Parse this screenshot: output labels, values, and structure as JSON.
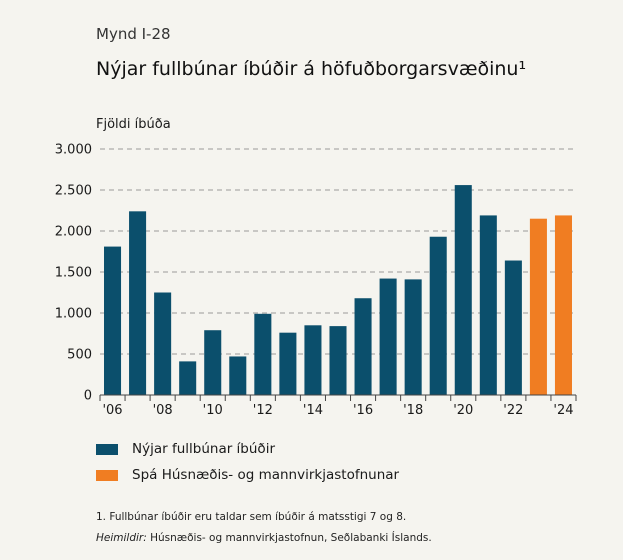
{
  "figure_label": "Mynd I-28",
  "title": "Nýjar fullbúnar íbúðir á höfuðborgarsvæðinu¹",
  "chart_data": {
    "type": "bar",
    "ylabel": "Fjöldi íbúða",
    "ylim": [
      0,
      3000
    ],
    "yticks": [
      0,
      500,
      1000,
      1500,
      2000,
      2500,
      3000
    ],
    "ytick_labels": [
      "0",
      "500",
      "1.000",
      "1.500",
      "2.000",
      "2.500",
      "3.000"
    ],
    "categories": [
      "2006",
      "2007",
      "2008",
      "2009",
      "2010",
      "2011",
      "2012",
      "2013",
      "2014",
      "2015",
      "2016",
      "2017",
      "2018",
      "2019",
      "2020",
      "2021",
      "2022",
      "2023",
      "2024"
    ],
    "xtick_labels": [
      "'06",
      "",
      "'08",
      "",
      "'10",
      "",
      "'12",
      "",
      "'14",
      "",
      "'16",
      "",
      "'18",
      "",
      "'20",
      "",
      "'22",
      "",
      "'24"
    ],
    "series": [
      {
        "name": "Nýjar fullbúnar íbúðir",
        "color": "#0b4f6c",
        "values": [
          1810,
          2240,
          1250,
          410,
          790,
          470,
          990,
          760,
          850,
          840,
          1180,
          1420,
          1410,
          1930,
          2560,
          2190,
          1640,
          null,
          null
        ]
      },
      {
        "name": "Spá Húsnæðis- og mannvirkjastofnunar",
        "color": "#f07d22",
        "values": [
          null,
          null,
          null,
          null,
          null,
          null,
          null,
          null,
          null,
          null,
          null,
          null,
          null,
          null,
          null,
          null,
          null,
          2150,
          2190
        ]
      }
    ],
    "grid": true,
    "legend_position": "bottom"
  },
  "footnote": "1. Fullbúnar íbúðir eru taldar sem íbúðir á matsstigi 7 og 8.",
  "sources_label": "Heimildir:",
  "sources_text": " Húsnæðis- og mannvirkjastofnun, Seðlabanki Íslands."
}
